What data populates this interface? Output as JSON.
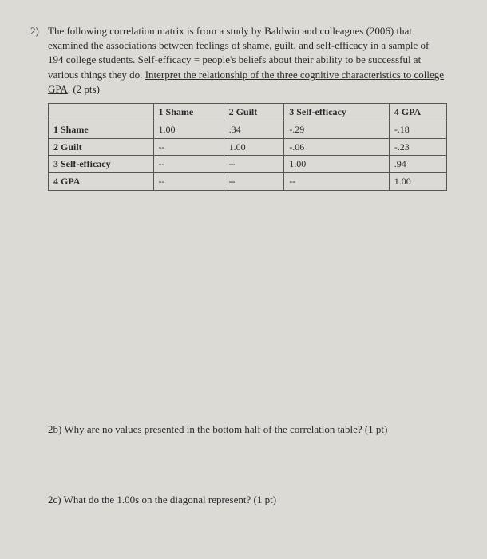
{
  "question": {
    "number": "2)",
    "text_part1": "The following correlation matrix is from a study by Baldwin and colleagues (2006) that examined the associations between feelings of shame, guilt, and self-efficacy in a sample of 194 college students.  Self-efficacy = people's beliefs about their ability to be successful at various things they do.  ",
    "text_underlined": "Interpret the relationship of the three cognitive characteristics to college GPA",
    "text_part2": ".  (2 pts)"
  },
  "table": {
    "columns": [
      "",
      "1 Shame",
      "2 Guilt",
      "3 Self-efficacy",
      "4 GPA"
    ],
    "rows": [
      [
        "1 Shame",
        "1.00",
        ".34",
        "-.29",
        "-.18"
      ],
      [
        "2 Guilt",
        "--",
        "1.00",
        "-.06",
        "-.23"
      ],
      [
        "3 Self-efficacy",
        "--",
        "--",
        "1.00",
        ".94"
      ],
      [
        "4 GPA",
        "--",
        "--",
        "--",
        "1.00"
      ]
    ]
  },
  "sub_b": {
    "label": "2b)",
    "text": "Why are no values presented in the bottom half of the correlation table? (1 pt)"
  },
  "sub_c": {
    "label": "2c)",
    "text": "What do the 1.00s on the diagonal represent?  (1 pt)"
  }
}
